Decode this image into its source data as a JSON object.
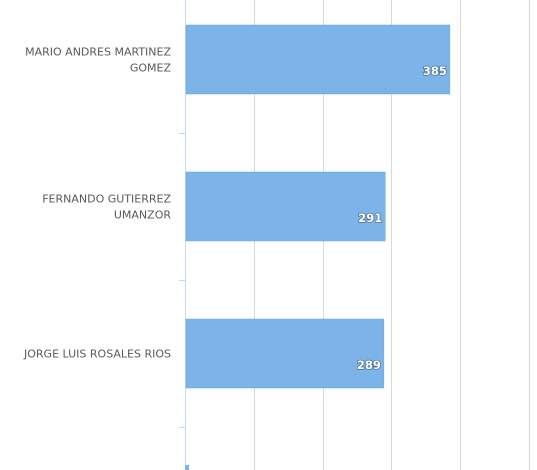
{
  "colors": {
    "bar": "#7cb4e9",
    "bar_stroke": "#6aa5de",
    "gridline": "#d9d9d9",
    "axis": "#c5d9ee",
    "label_text": "#595959",
    "data_label_text": "#ffffff"
  },
  "chart_data": {
    "type": "bar",
    "orientation": "horizontal",
    "categories": [
      [
        "MARIO ANDRES MARTINEZ",
        "GOMEZ"
      ],
      [
        "FERNANDO GUTIERREZ",
        "UMANZOR"
      ],
      [
        "JORGE LUIS ROSALES RIOS"
      ]
    ],
    "values": [
      385,
      291,
      289
    ],
    "data_labels": [
      "385",
      "291",
      "289"
    ],
    "xlim": [
      0,
      500
    ],
    "grid": true,
    "legend": "none",
    "title": "",
    "xlabel": "",
    "ylabel": ""
  }
}
